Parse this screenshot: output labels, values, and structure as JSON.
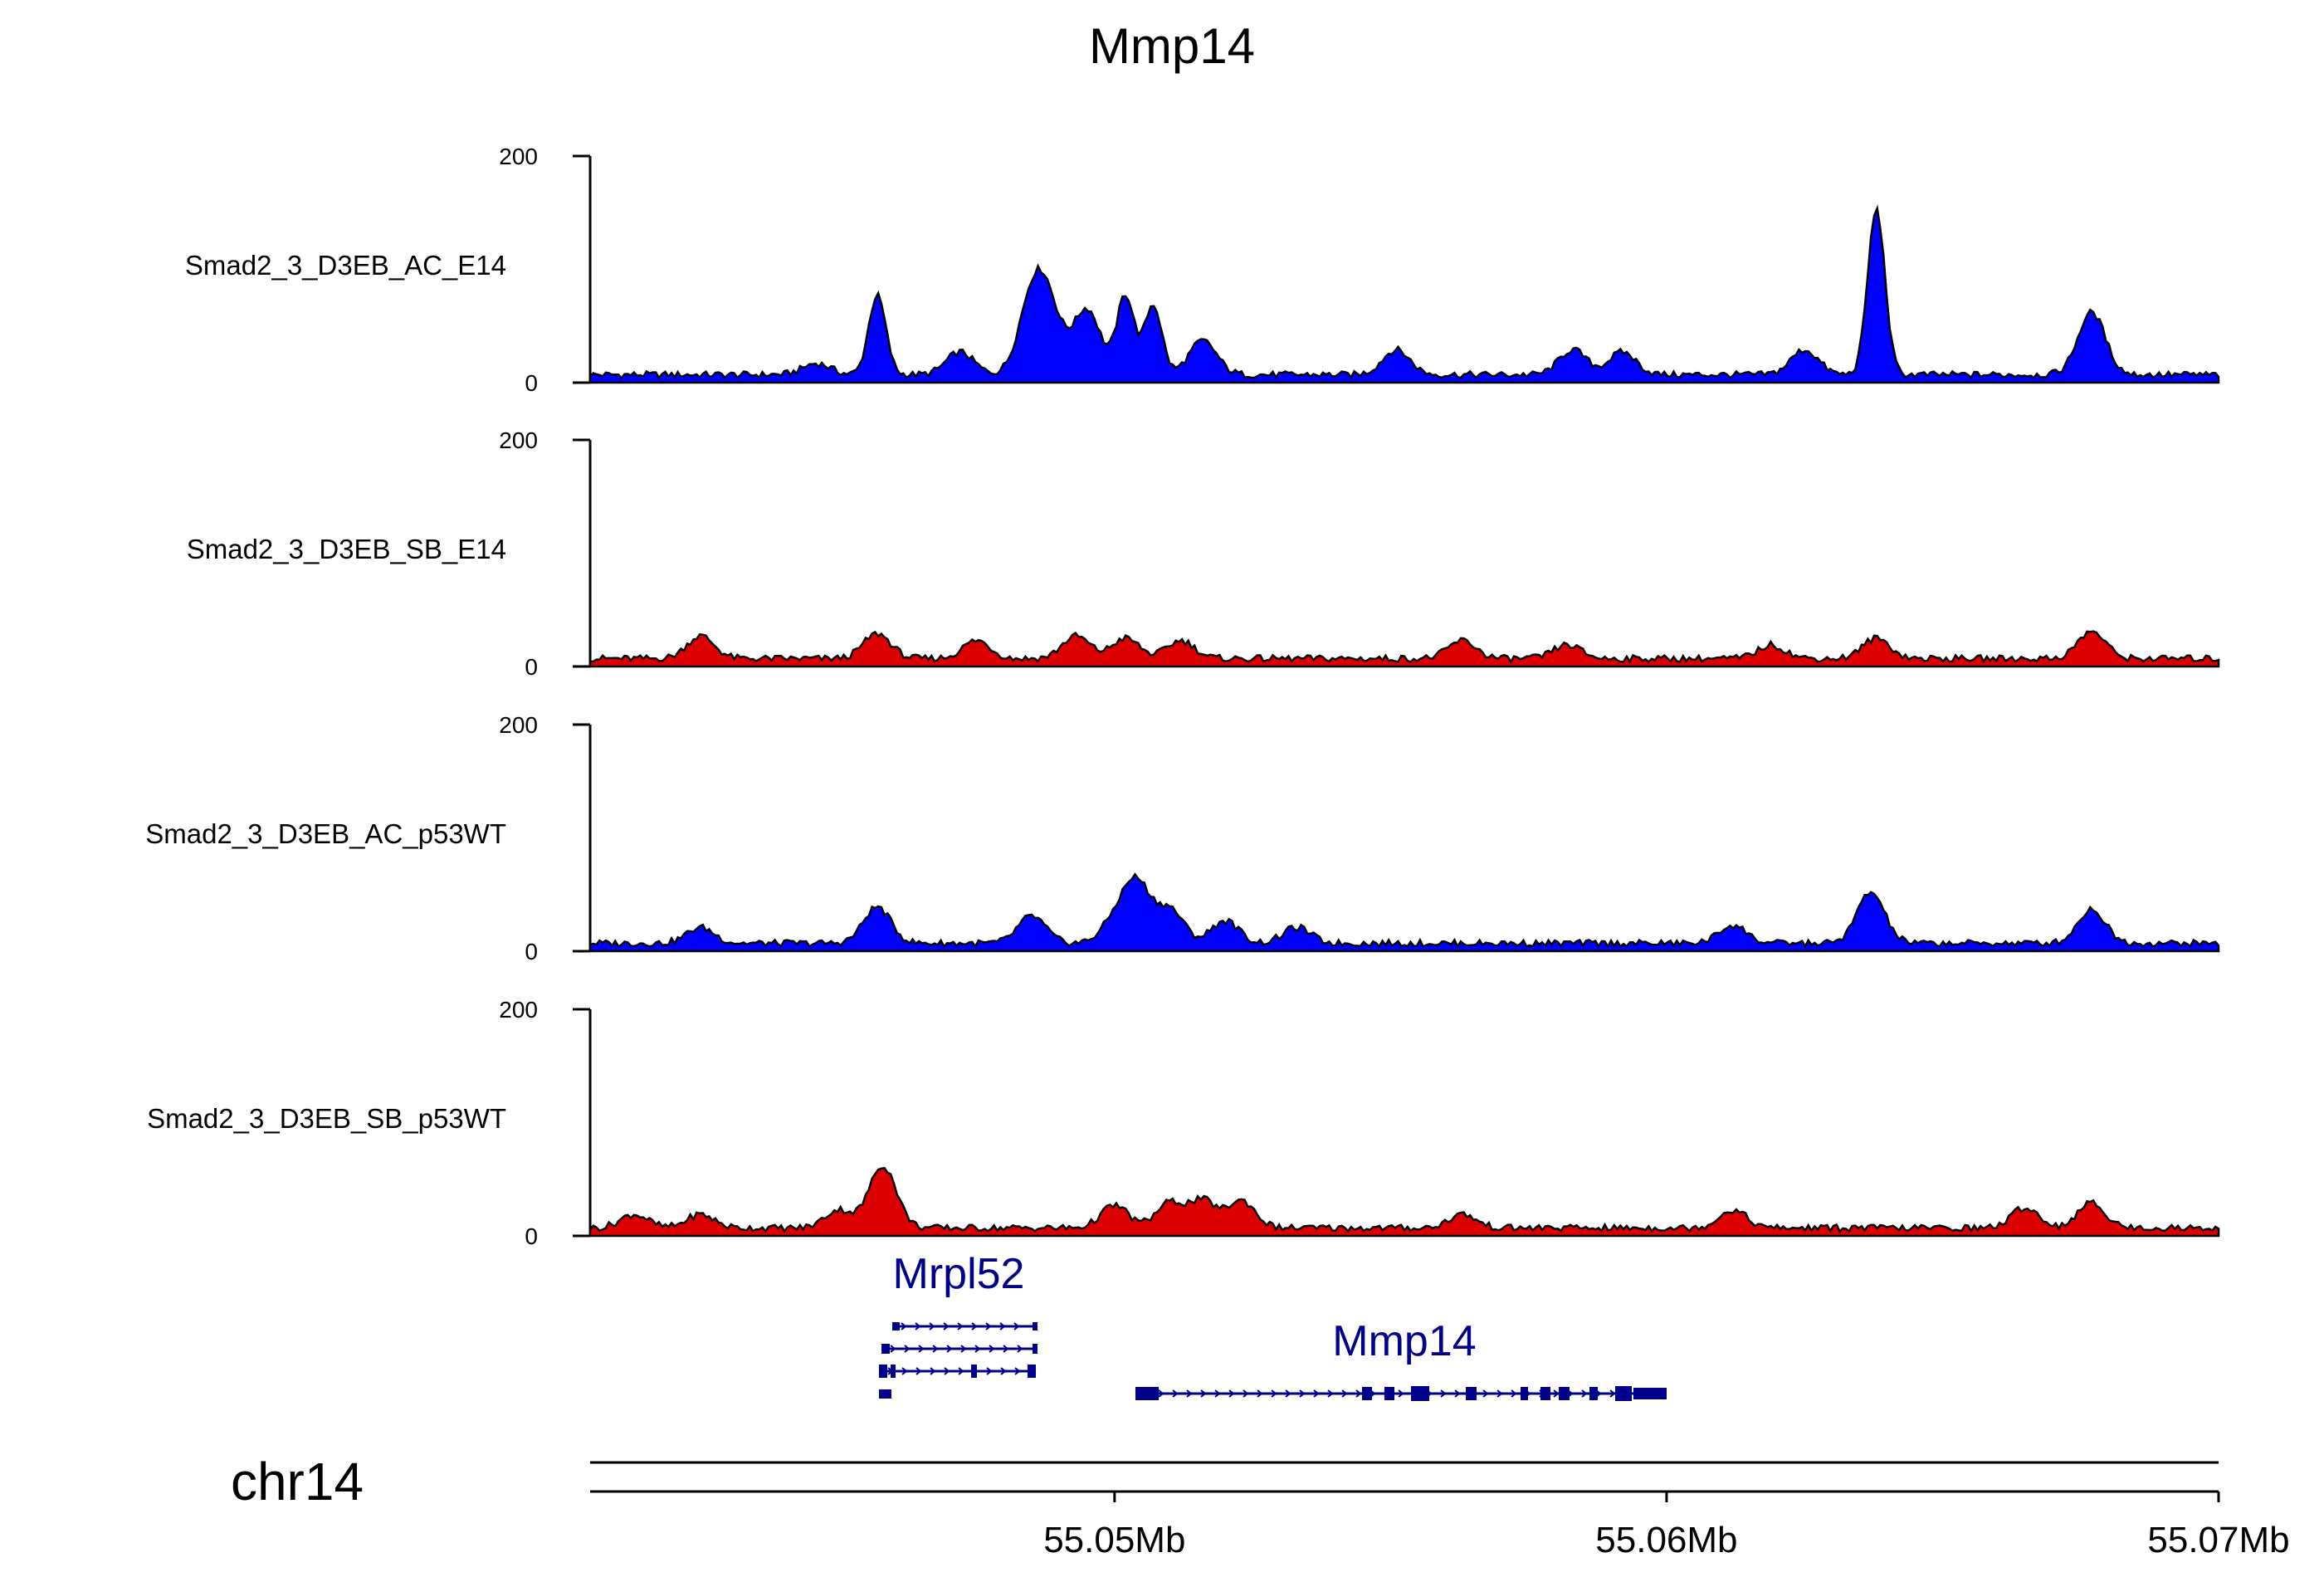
{
  "chart_data": {
    "type": "area",
    "title": "Mmp14",
    "x_range_mb": [
      55.0405,
      55.07
    ],
    "y_range": [
      0,
      200
    ],
    "y_ticks": [
      0,
      200
    ],
    "colors": {
      "blue": "#0000ff",
      "red": "#dd0000",
      "outline": "#000000",
      "gene": "#00008b"
    },
    "tracks": [
      {
        "name": "Smad2_3_D3EB_AC_E14",
        "color": "#0000ff",
        "peaks": [
          [
            55.0446,
            10
          ],
          [
            55.0457,
            70
          ],
          [
            55.0472,
            20
          ],
          [
            55.0485,
            60
          ],
          [
            55.0488,
            52
          ],
          [
            55.0495,
            58
          ],
          [
            55.0502,
            70
          ],
          [
            55.0507,
            62
          ],
          [
            55.0516,
            30
          ],
          [
            55.0551,
            22
          ],
          [
            55.0583,
            22
          ],
          [
            55.0592,
            20
          ],
          [
            55.0625,
            22
          ],
          [
            55.0638,
            146
          ],
          [
            55.0677,
            55
          ]
        ]
      },
      {
        "name": "Smad2_3_D3EB_SB_E14",
        "color": "#dd0000",
        "peaks": [
          [
            55.0425,
            20
          ],
          [
            55.0457,
            22
          ],
          [
            55.0475,
            16
          ],
          [
            55.0493,
            20
          ],
          [
            55.0502,
            18
          ],
          [
            55.0512,
            16
          ],
          [
            55.0563,
            16
          ],
          [
            55.0582,
            12
          ],
          [
            55.0619,
            12
          ],
          [
            55.0638,
            18
          ],
          [
            55.0677,
            24
          ]
        ]
      },
      {
        "name": "Smad2_3_D3EB_AC_p53WT",
        "color": "#0000ff",
        "peaks": [
          [
            55.0425,
            14
          ],
          [
            55.0457,
            32
          ],
          [
            55.0485,
            24
          ],
          [
            55.05,
            18
          ],
          [
            55.0504,
            52
          ],
          [
            55.051,
            30
          ],
          [
            55.052,
            20
          ],
          [
            55.0533,
            14
          ],
          [
            55.0612,
            16
          ],
          [
            55.0637,
            45
          ],
          [
            55.0677,
            30
          ]
        ]
      },
      {
        "name": "Smad2_3_D3EB_SB_p53WT",
        "color": "#dd0000",
        "peaks": [
          [
            55.0413,
            12
          ],
          [
            55.0425,
            12
          ],
          [
            55.045,
            16
          ],
          [
            55.0458,
            55
          ],
          [
            55.05,
            20
          ],
          [
            55.051,
            22
          ],
          [
            55.0516,
            24
          ],
          [
            55.0523,
            24
          ],
          [
            55.0563,
            12
          ],
          [
            55.0612,
            16
          ],
          [
            55.0665,
            18
          ],
          [
            55.0677,
            22
          ]
        ]
      }
    ],
    "genes": [
      {
        "name": "Mrpl52"
      },
      {
        "name": "Mmp14"
      }
    ],
    "chromosome": "chr14",
    "x_ticks": [
      {
        "value": 55.05,
        "label": "55.05Mb"
      },
      {
        "value": 55.06,
        "label": "55.06Mb"
      },
      {
        "value": 55.07,
        "label": "55.07Mb"
      }
    ]
  }
}
